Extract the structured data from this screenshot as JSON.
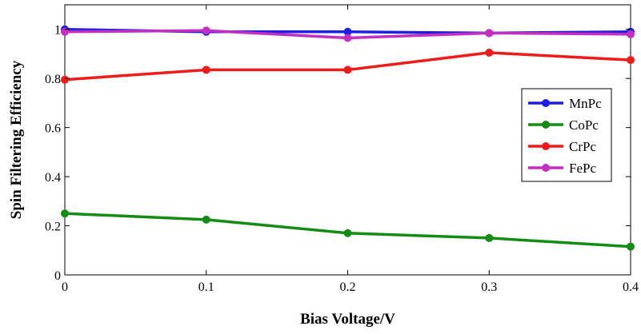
{
  "chart_data": {
    "type": "line",
    "title": "",
    "xlabel": "Bias Voltage/V",
    "ylabel": "Spin Filtering Efficiency",
    "x": [
      0,
      0.1,
      0.2,
      0.3,
      0.4
    ],
    "x_ticks": [
      "0",
      "0.1",
      "0.2",
      "0.3",
      "0.4"
    ],
    "y_ticks": [
      "0",
      "0.2",
      "0.4",
      "0.6",
      "0.8",
      "1"
    ],
    "xlim": [
      0,
      0.4
    ],
    "ylim": [
      0,
      1.1
    ],
    "grid": false,
    "legend_position": "right",
    "series": [
      {
        "name": "MnPc",
        "color": "#1f1fe0",
        "values": [
          1.0,
          0.99,
          0.99,
          0.985,
          0.99
        ]
      },
      {
        "name": "CoPc",
        "color": "#148c14",
        "values": [
          0.25,
          0.225,
          0.17,
          0.15,
          0.115
        ]
      },
      {
        "name": "CrPc",
        "color": "#ee1b1b",
        "values": [
          0.795,
          0.835,
          0.835,
          0.905,
          0.875
        ]
      },
      {
        "name": "FePc",
        "color": "#c22fc2",
        "values": [
          0.99,
          0.995,
          0.965,
          0.985,
          0.98
        ]
      }
    ]
  }
}
